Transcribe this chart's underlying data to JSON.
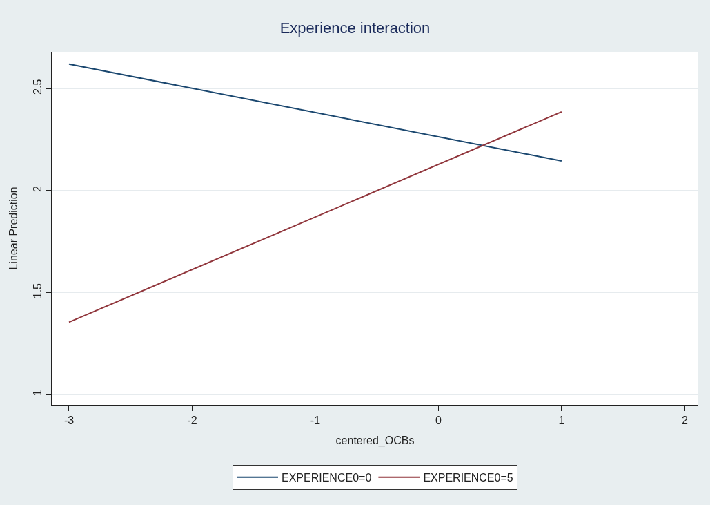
{
  "chart_data": {
    "type": "line",
    "title": "Experience interaction",
    "xlabel": "centered_OCBs",
    "ylabel": "Linear Prediction",
    "x": [
      -3,
      1
    ],
    "series": [
      {
        "name": "EXPERIENCE0=0",
        "color": "#1a476f",
        "values": [
          2.62,
          2.145
        ]
      },
      {
        "name": "EXPERIENCE0=5",
        "color": "#90353b",
        "values": [
          1.355,
          2.386
        ]
      }
    ],
    "xlim": [
      -3.14,
      2.11
    ],
    "xticks": [
      -3,
      -2,
      -1,
      0,
      1,
      2
    ],
    "ylim": [
      0.95,
      2.68
    ],
    "yticks": [
      1,
      1.5,
      2,
      2.5
    ],
    "grid": "y",
    "legend": "bottom",
    "marker": "none",
    "line_style": "solid"
  }
}
